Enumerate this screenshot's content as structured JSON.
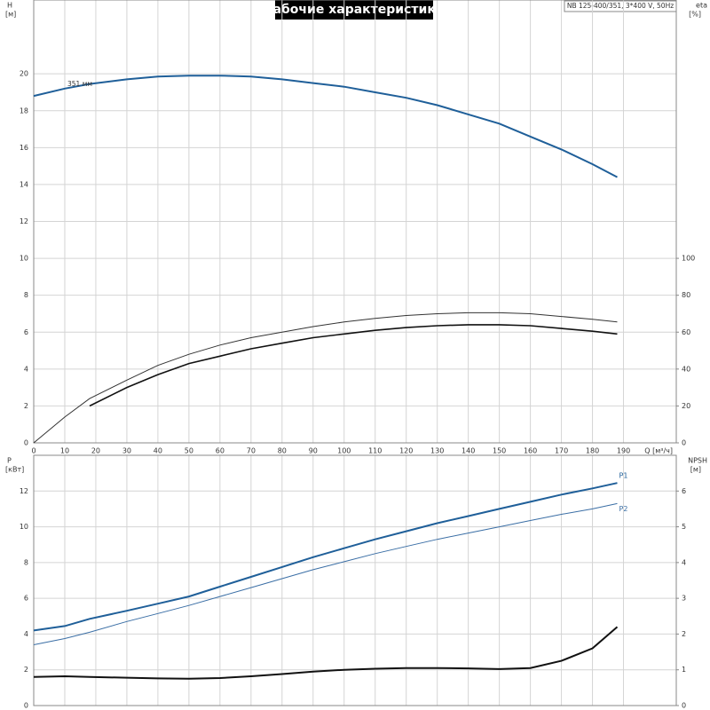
{
  "title": "Рабочие характеристики",
  "info": "NB 125-400/351, 3*400 V, 50Hz",
  "chart_data": [
    {
      "type": "line",
      "ylabel": "H",
      "yunit": "[м]",
      "y2label": "eta",
      "y2unit": "[%]",
      "xlabel": "Q [м³/ч]",
      "x": [
        0,
        10,
        18,
        30,
        40,
        50,
        60,
        70,
        80,
        90,
        100,
        110,
        120,
        130,
        140,
        150,
        160,
        170,
        180,
        188
      ],
      "xlim": [
        0,
        207
      ],
      "xticks": [
        0,
        10,
        20,
        30,
        40,
        50,
        60,
        70,
        80,
        90,
        100,
        110,
        120,
        130,
        140,
        150,
        160,
        170,
        180,
        190
      ],
      "ylim": [
        0,
        24
      ],
      "yticks": [
        0,
        2,
        4,
        6,
        8,
        10,
        12,
        14,
        16,
        18,
        20
      ],
      "y2lim": [
        0,
        240
      ],
      "y2ticks": [
        0,
        20,
        40,
        60,
        80,
        100
      ],
      "grid": true,
      "series": [
        {
          "name": "351 мм",
          "color": "#1f5f99",
          "values": [
            18.8,
            19.2,
            19.45,
            19.7,
            19.85,
            19.9,
            19.9,
            19.85,
            19.7,
            19.5,
            19.3,
            19.0,
            18.7,
            18.3,
            17.8,
            17.3,
            16.6,
            15.9,
            15.1,
            14.4
          ]
        },
        {
          "color": "#111111",
          "axis": "y2",
          "values": [
            null,
            null,
            20,
            30,
            37,
            43,
            47,
            51,
            54,
            57,
            59,
            61,
            62.5,
            63.5,
            64,
            64,
            63.5,
            62,
            60.5,
            59
          ]
        },
        {
          "color": "#333333",
          "axis": "y2",
          "values": [
            0,
            14,
            24,
            34,
            42,
            48,
            53,
            57,
            60,
            63,
            65.5,
            67.5,
            69,
            70,
            70.5,
            70.5,
            70,
            68.5,
            67,
            65.5
          ]
        }
      ]
    },
    {
      "type": "line",
      "ylabel": "P",
      "yunit": "[кВт]",
      "y2label": "NPSH",
      "y2unit": "[м]",
      "x": [
        0,
        10,
        18,
        30,
        40,
        50,
        60,
        70,
        80,
        90,
        100,
        110,
        120,
        130,
        140,
        150,
        160,
        170,
        180,
        188
      ],
      "xlim": [
        0,
        207
      ],
      "ylim": [
        0,
        14
      ],
      "yticks": [
        0,
        2,
        4,
        6,
        8,
        10,
        12
      ],
      "y2lim": [
        0,
        7
      ],
      "y2ticks": [
        0,
        1,
        2,
        3,
        4,
        5,
        6
      ],
      "grid": true,
      "series": [
        {
          "name": "P1",
          "color": "#1f5f99",
          "values": [
            4.2,
            4.45,
            4.85,
            5.3,
            5.7,
            6.1,
            6.65,
            7.2,
            7.75,
            8.3,
            8.8,
            9.3,
            9.75,
            10.2,
            10.6,
            11.0,
            11.4,
            11.8,
            12.15,
            12.45
          ]
        },
        {
          "name": "P2",
          "color": "#3a6ea5",
          "values": [
            3.4,
            3.75,
            4.1,
            4.7,
            5.15,
            5.6,
            6.1,
            6.6,
            7.1,
            7.6,
            8.05,
            8.5,
            8.9,
            9.3,
            9.65,
            10.0,
            10.35,
            10.7,
            11.0,
            11.3
          ]
        },
        {
          "color": "#111111",
          "axis": "y2",
          "values": [
            0.8,
            0.82,
            0.8,
            0.78,
            0.76,
            0.75,
            0.77,
            0.82,
            0.88,
            0.95,
            1.0,
            1.03,
            1.05,
            1.05,
            1.04,
            1.02,
            1.05,
            1.25,
            1.6,
            2.2
          ]
        }
      ]
    }
  ]
}
